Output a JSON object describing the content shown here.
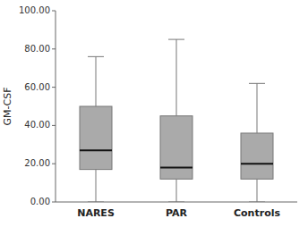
{
  "chart_data": {
    "type": "box",
    "categories": [
      "NARES",
      "PAR",
      "Controls"
    ],
    "values": [
      {
        "whislo": 0.0,
        "q1": 17.0,
        "med": 27.0,
        "q3": 50.0,
        "whishi": 76.0
      },
      {
        "whislo": 0.0,
        "q1": 12.0,
        "med": 18.0,
        "q3": 45.0,
        "whishi": 85.0
      },
      {
        "whislo": 0.0,
        "q1": 12.0,
        "med": 20.0,
        "q3": 36.0,
        "whishi": 62.0
      }
    ],
    "ylabel": "GM-CSF",
    "ylim": [
      0,
      100
    ],
    "yticks": [
      {
        "value": 0.0,
        "label": "0.00"
      },
      {
        "value": 20.0,
        "label": "20.00"
      },
      {
        "value": 40.0,
        "label": "40.00"
      },
      {
        "value": 60.0,
        "label": "60.00"
      },
      {
        "value": 80.0,
        "label": "80.00"
      },
      {
        "value": 100.0,
        "label": "100.00"
      }
    ],
    "color": "#aaaaaa",
    "grid": false
  }
}
